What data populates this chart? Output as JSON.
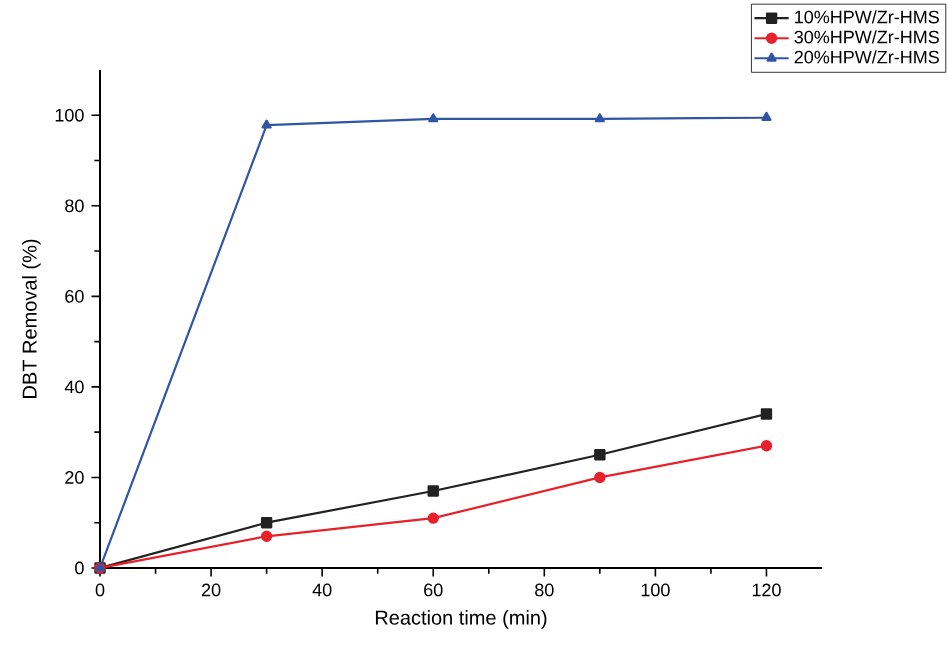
{
  "chart_data": {
    "type": "line",
    "xlabel": "Reaction time (min)",
    "ylabel": "DBT Removal (%)",
    "x": [
      0,
      30,
      60,
      90,
      120
    ],
    "series": [
      {
        "name": "10%HPW/Zr-HMS",
        "color": "#222222",
        "marker": "square",
        "values": [
          0,
          10,
          17,
          25,
          34
        ]
      },
      {
        "name": "30%HPW/Zr-HMS",
        "color": "#e8202a",
        "marker": "circle",
        "values": [
          0,
          7,
          11,
          20,
          27
        ]
      },
      {
        "name": "20%HPW/Zr-HMS",
        "color": "#2f55a4",
        "marker": "triangle",
        "values": [
          0,
          97.8,
          99.2,
          99.2,
          99.5
        ]
      }
    ],
    "xlim": [
      0,
      130
    ],
    "ylim": [
      0,
      110
    ],
    "xticks": [
      0,
      20,
      40,
      60,
      80,
      100,
      120
    ],
    "yticks": [
      0,
      20,
      40,
      60,
      80,
      100
    ],
    "legend": "top right",
    "line_style": "solid"
  }
}
